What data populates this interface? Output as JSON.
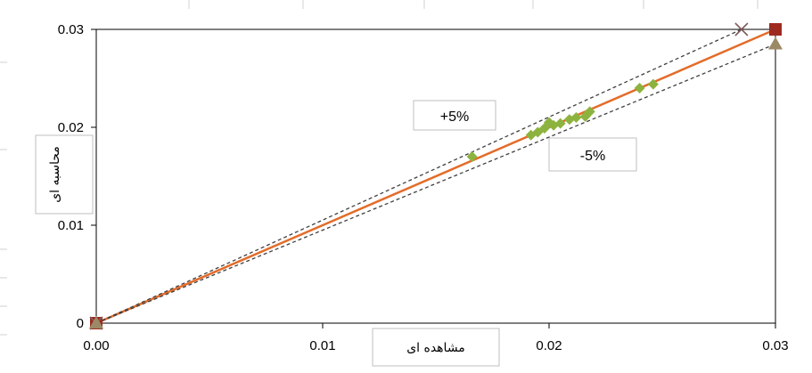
{
  "chart_data": {
    "type": "scatter",
    "xlabel": "مشاهده ای",
    "ylabel": "محاسبه ای",
    "xlim": [
      0,
      0.03
    ],
    "ylim": [
      0,
      0.03
    ],
    "x_ticks": [
      "0.00",
      "0.01",
      "0.02",
      "0.03"
    ],
    "y_ticks": [
      "0",
      "0.01",
      "0.02",
      "0.03"
    ],
    "x_tick_values": [
      0,
      0.01,
      0.02,
      0.03
    ],
    "y_tick_values": [
      0,
      0.01,
      0.02,
      0.03
    ],
    "grid": false,
    "series": [
      {
        "marker": "diamond",
        "color": "#8db33f",
        "points": [
          [
            0.0166,
            0.017
          ],
          [
            0.0192,
            0.0192
          ],
          [
            0.0195,
            0.0195
          ],
          [
            0.0198,
            0.0199
          ],
          [
            0.02,
            0.0205
          ],
          [
            0.0202,
            0.0202
          ],
          [
            0.0205,
            0.0204
          ],
          [
            0.0209,
            0.0208
          ],
          [
            0.0212,
            0.021
          ],
          [
            0.0216,
            0.0211
          ],
          [
            0.0218,
            0.0216
          ],
          [
            0.024,
            0.024
          ],
          [
            0.0246,
            0.0244
          ]
        ]
      },
      {
        "marker": "square",
        "color": "#9e2a1f",
        "points": [
          [
            0,
            0
          ],
          [
            0.03,
            0.03
          ]
        ]
      },
      {
        "marker": "x",
        "color": "#7f5c5c",
        "points": [
          [
            0,
            0
          ],
          [
            0.0285,
            0.03
          ]
        ]
      },
      {
        "marker": "triangle",
        "color": "#9c8a66",
        "points": [
          [
            0,
            0
          ],
          [
            0.03,
            0.0285
          ]
        ]
      }
    ],
    "lines": [
      {
        "style": "solid",
        "color": "#e36c2a",
        "from": [
          0,
          0
        ],
        "to": [
          0.03,
          0.03
        ]
      },
      {
        "style": "dashed",
        "color": "#404040",
        "from": [
          0,
          0
        ],
        "to": [
          0.0285,
          0.03
        ]
      },
      {
        "style": "dashed",
        "color": "#404040",
        "from": [
          0,
          0
        ],
        "to": [
          0.03,
          0.0285
        ]
      }
    ],
    "annotations": [
      "+5%",
      "-5%"
    ]
  }
}
